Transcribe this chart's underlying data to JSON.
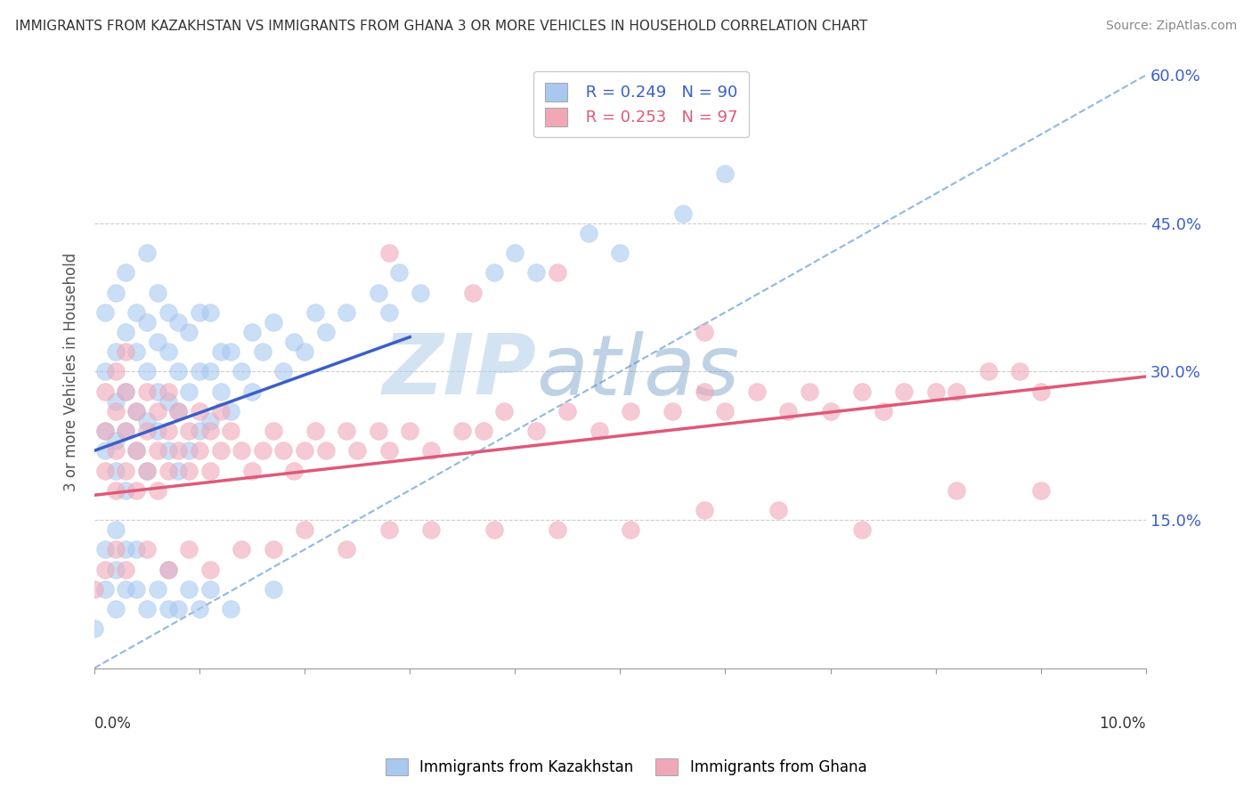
{
  "title": "IMMIGRANTS FROM KAZAKHSTAN VS IMMIGRANTS FROM GHANA 3 OR MORE VEHICLES IN HOUSEHOLD CORRELATION CHART",
  "source": "Source: ZipAtlas.com",
  "ylabel": "3 or more Vehicles in Household",
  "color_kazakhstan": "#a8c8f0",
  "color_ghana": "#f0a8b8",
  "line_color_kazakhstan": "#3a5fc8",
  "line_color_ghana": "#e05878",
  "line_color_trendline": "#90b8e0",
  "x_min": 0.0,
  "x_max": 0.1,
  "y_min": 0.0,
  "y_max": 0.6,
  "yticks": [
    0.0,
    0.15,
    0.3,
    0.45,
    0.6
  ],
  "ytick_labels": [
    "",
    "15.0%",
    "30.0%",
    "45.0%",
    "60.0%"
  ],
  "kaz_line": [
    0.0,
    0.22,
    0.03,
    0.335
  ],
  "ghana_line": [
    0.0,
    0.175,
    0.1,
    0.295
  ],
  "dash_line": [
    0.0,
    0.0,
    0.1,
    0.6
  ],
  "kazakhstan_x": [
    0.001,
    0.001,
    0.001,
    0.001,
    0.002,
    0.002,
    0.002,
    0.002,
    0.002,
    0.003,
    0.003,
    0.003,
    0.003,
    0.003,
    0.004,
    0.004,
    0.004,
    0.004,
    0.005,
    0.005,
    0.005,
    0.005,
    0.005,
    0.006,
    0.006,
    0.006,
    0.006,
    0.007,
    0.007,
    0.007,
    0.007,
    0.008,
    0.008,
    0.008,
    0.008,
    0.009,
    0.009,
    0.009,
    0.01,
    0.01,
    0.01,
    0.011,
    0.011,
    0.011,
    0.012,
    0.012,
    0.013,
    0.013,
    0.014,
    0.015,
    0.015,
    0.016,
    0.017,
    0.018,
    0.019,
    0.02,
    0.021,
    0.022,
    0.024,
    0.027,
    0.028,
    0.029,
    0.031,
    0.038,
    0.04,
    0.042,
    0.047,
    0.05,
    0.056,
    0.06,
    0.0,
    0.001,
    0.001,
    0.002,
    0.002,
    0.002,
    0.003,
    0.003,
    0.004,
    0.004,
    0.005,
    0.006,
    0.007,
    0.007,
    0.008,
    0.009,
    0.01,
    0.011,
    0.013,
    0.017
  ],
  "kazakhstan_y": [
    0.22,
    0.24,
    0.3,
    0.36,
    0.2,
    0.23,
    0.27,
    0.32,
    0.38,
    0.18,
    0.24,
    0.28,
    0.34,
    0.4,
    0.22,
    0.26,
    0.32,
    0.36,
    0.2,
    0.25,
    0.3,
    0.35,
    0.42,
    0.24,
    0.28,
    0.33,
    0.38,
    0.22,
    0.27,
    0.32,
    0.36,
    0.2,
    0.26,
    0.3,
    0.35,
    0.22,
    0.28,
    0.34,
    0.24,
    0.3,
    0.36,
    0.25,
    0.3,
    0.36,
    0.28,
    0.32,
    0.26,
    0.32,
    0.3,
    0.28,
    0.34,
    0.32,
    0.35,
    0.3,
    0.33,
    0.32,
    0.36,
    0.34,
    0.36,
    0.38,
    0.36,
    0.4,
    0.38,
    0.4,
    0.42,
    0.4,
    0.44,
    0.42,
    0.46,
    0.5,
    0.04,
    0.08,
    0.12,
    0.06,
    0.1,
    0.14,
    0.08,
    0.12,
    0.08,
    0.12,
    0.06,
    0.08,
    0.06,
    0.1,
    0.06,
    0.08,
    0.06,
    0.08,
    0.06,
    0.08
  ],
  "ghana_x": [
    0.001,
    0.001,
    0.001,
    0.002,
    0.002,
    0.002,
    0.002,
    0.003,
    0.003,
    0.003,
    0.003,
    0.004,
    0.004,
    0.004,
    0.005,
    0.005,
    0.005,
    0.006,
    0.006,
    0.006,
    0.007,
    0.007,
    0.007,
    0.008,
    0.008,
    0.009,
    0.009,
    0.01,
    0.01,
    0.011,
    0.011,
    0.012,
    0.012,
    0.013,
    0.014,
    0.015,
    0.016,
    0.017,
    0.018,
    0.019,
    0.02,
    0.021,
    0.022,
    0.024,
    0.025,
    0.027,
    0.028,
    0.03,
    0.032,
    0.035,
    0.037,
    0.039,
    0.042,
    0.045,
    0.048,
    0.051,
    0.055,
    0.058,
    0.06,
    0.063,
    0.066,
    0.068,
    0.07,
    0.073,
    0.075,
    0.077,
    0.08,
    0.082,
    0.085,
    0.088,
    0.09,
    0.0,
    0.001,
    0.002,
    0.003,
    0.005,
    0.007,
    0.009,
    0.011,
    0.014,
    0.017,
    0.02,
    0.024,
    0.028,
    0.032,
    0.038,
    0.044,
    0.051,
    0.058,
    0.065,
    0.073,
    0.082,
    0.09,
    0.028,
    0.036,
    0.044,
    0.058
  ],
  "ghana_y": [
    0.2,
    0.24,
    0.28,
    0.18,
    0.22,
    0.26,
    0.3,
    0.2,
    0.24,
    0.28,
    0.32,
    0.18,
    0.22,
    0.26,
    0.2,
    0.24,
    0.28,
    0.18,
    0.22,
    0.26,
    0.2,
    0.24,
    0.28,
    0.22,
    0.26,
    0.2,
    0.24,
    0.22,
    0.26,
    0.2,
    0.24,
    0.22,
    0.26,
    0.24,
    0.22,
    0.2,
    0.22,
    0.24,
    0.22,
    0.2,
    0.22,
    0.24,
    0.22,
    0.24,
    0.22,
    0.24,
    0.22,
    0.24,
    0.22,
    0.24,
    0.24,
    0.26,
    0.24,
    0.26,
    0.24,
    0.26,
    0.26,
    0.28,
    0.26,
    0.28,
    0.26,
    0.28,
    0.26,
    0.28,
    0.26,
    0.28,
    0.28,
    0.28,
    0.3,
    0.3,
    0.28,
    0.08,
    0.1,
    0.12,
    0.1,
    0.12,
    0.1,
    0.12,
    0.1,
    0.12,
    0.12,
    0.14,
    0.12,
    0.14,
    0.14,
    0.14,
    0.14,
    0.14,
    0.16,
    0.16,
    0.14,
    0.18,
    0.18,
    0.42,
    0.38,
    0.4,
    0.34
  ]
}
